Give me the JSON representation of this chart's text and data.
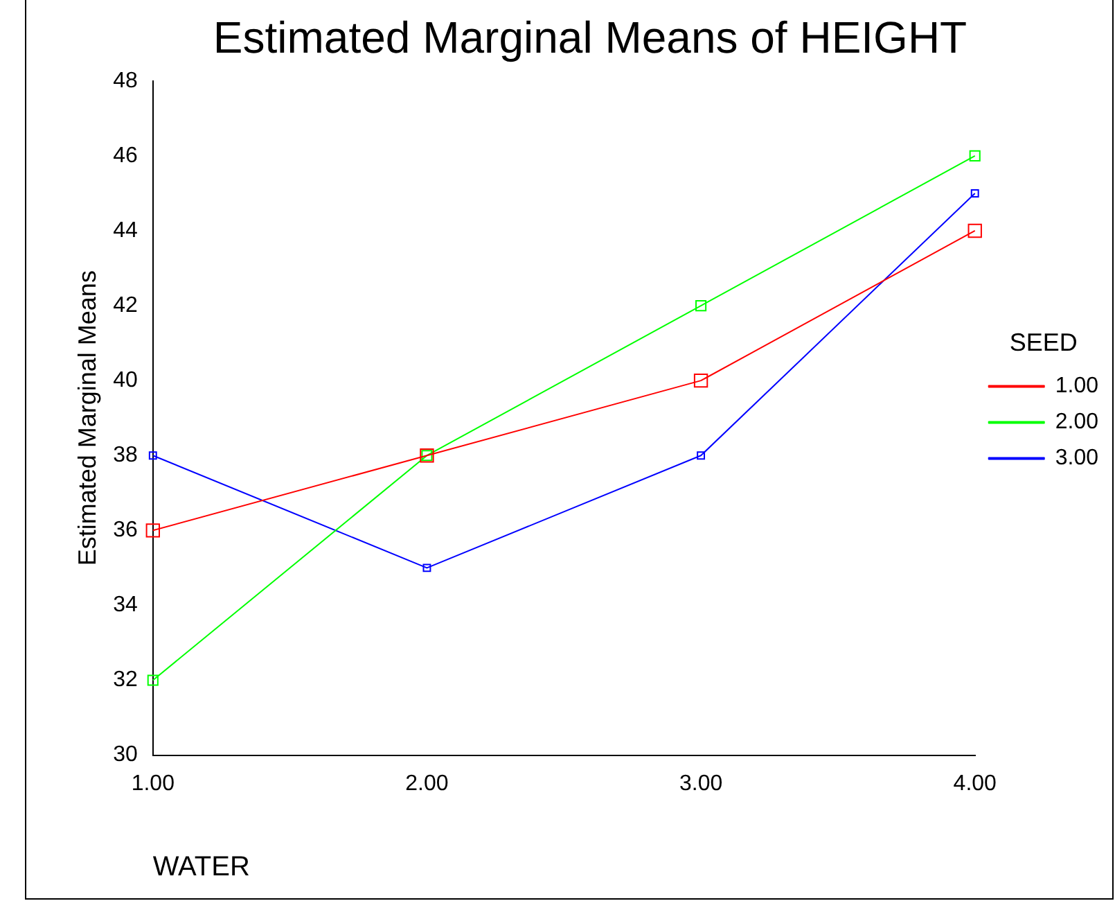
{
  "chart_data": {
    "type": "line",
    "title": "Estimated Marginal Means of HEIGHT",
    "xlabel": "WATER",
    "ylabel": "Estimated Marginal Means",
    "legend_title": "SEED",
    "categories": [
      "1.00",
      "2.00",
      "3.00",
      "4.00"
    ],
    "series": [
      {
        "name": "1.00",
        "color": "#ff0000",
        "values": [
          36,
          38,
          40,
          44
        ]
      },
      {
        "name": "2.00",
        "color": "#00ff00",
        "values": [
          32,
          38,
          42,
          46
        ]
      },
      {
        "name": "3.00",
        "color": "#0000ff",
        "values": [
          38,
          35,
          38,
          45
        ]
      }
    ],
    "ylim": [
      30,
      48
    ],
    "yticks": [
      30,
      32,
      34,
      36,
      38,
      40,
      42,
      44,
      46,
      48
    ],
    "grid": false,
    "legend": "right",
    "marker": "square",
    "line_style": "solid"
  }
}
